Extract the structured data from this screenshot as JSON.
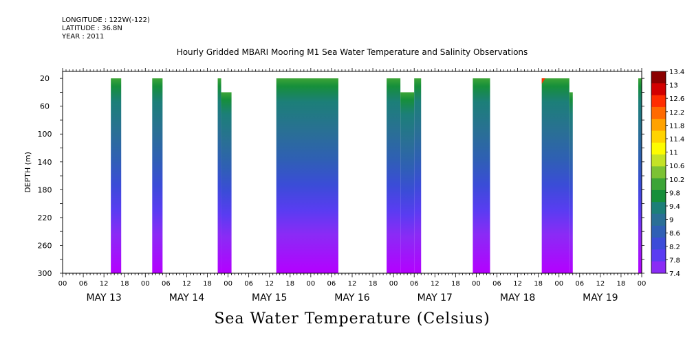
{
  "header": {
    "longitude": "LONGITUDE : 122W(-122)",
    "latitude": "LATITUDE : 36.8N",
    "year": "YEAR : 2011"
  },
  "colors": {
    "palette": [
      "#b400ff",
      "#8a2bf5",
      "#5a3cf2",
      "#3b4cd8",
      "#2f5fb5",
      "#2a6f96",
      "#1c7f78",
      "#168f3a",
      "#3ca437",
      "#7cc234",
      "#c4e226",
      "#fdfc00",
      "#ffd300",
      "#ffa200",
      "#ff6a00",
      "#ff2d00",
      "#d20000",
      "#8b0000"
    ]
  },
  "chart_data": {
    "type": "heatmap",
    "title": "Hourly Gridded MBARI Mooring M1 Sea Water Temperature and Salinity Observations",
    "quantity_label": "Sea Water Temperature (Celsius)",
    "ylabel": "DEPTH (m)",
    "ylim": [
      0,
      300
    ],
    "y_inverted": true,
    "y_ticks": [
      20,
      60,
      100,
      140,
      180,
      220,
      260,
      300
    ],
    "x_hour_ticks": [
      "00",
      "06",
      "12",
      "18",
      "00",
      "06",
      "12",
      "18",
      "00",
      "06",
      "12",
      "18",
      "00",
      "06",
      "12",
      "18",
      "00",
      "06",
      "12",
      "18",
      "00",
      "06",
      "12",
      "18",
      "00",
      "06",
      "12",
      "18",
      "00"
    ],
    "x_day_labels": [
      "MAY 13",
      "MAY 14",
      "MAY 15",
      "MAY 16",
      "MAY 17",
      "MAY 18",
      "MAY 19"
    ],
    "time_range_hours": [
      0,
      168
    ],
    "colorbar_levels": [
      "13.4",
      "13",
      "12.6",
      "12.2",
      "11.8",
      "11.4",
      "11",
      "10.6",
      "10.2",
      "9.8",
      "9.4",
      "9",
      "8.6",
      "8.2",
      "7.8",
      "7.4"
    ],
    "data_segments": [
      {
        "start_day": "MAY 13",
        "start_hour": 14,
        "end_day": "MAY 13",
        "end_hour": 17,
        "top_depth": 20
      },
      {
        "start_day": "MAY 14",
        "start_hour": 2,
        "end_day": "MAY 14",
        "end_hour": 5,
        "top_depth": 20
      },
      {
        "start_day": "MAY 14",
        "start_hour": 21,
        "end_day": "MAY 14",
        "end_hour": 22,
        "top_depth": 20
      },
      {
        "start_day": "MAY 14",
        "start_hour": 22,
        "end_day": "MAY 15",
        "end_hour": 1,
        "top_depth": 40
      },
      {
        "start_day": "MAY 15",
        "start_hour": 14,
        "end_day": "MAY 16",
        "end_hour": 8,
        "top_depth": 20
      },
      {
        "start_day": "MAY 16",
        "start_hour": 22,
        "end_day": "MAY 17",
        "end_hour": 2,
        "top_depth": 20
      },
      {
        "start_day": "MAY 17",
        "start_hour": 2,
        "end_day": "MAY 17",
        "end_hour": 6,
        "top_depth": 40
      },
      {
        "start_day": "MAY 17",
        "start_hour": 6,
        "end_day": "MAY 17",
        "end_hour": 8,
        "top_depth": 20
      },
      {
        "start_day": "MAY 17",
        "start_hour": 23,
        "end_day": "MAY 18",
        "end_hour": 4,
        "top_depth": 20
      },
      {
        "start_day": "MAY 18",
        "start_hour": 19,
        "end_day": "MAY 19",
        "end_hour": 3,
        "top_depth": 20
      },
      {
        "start_day": "MAY 19",
        "start_hour": 3,
        "end_day": "MAY 19",
        "end_hour": 4,
        "top_depth": 40
      },
      {
        "start_day": "MAY 19",
        "start_hour": 23,
        "end_day": "MAY 20",
        "end_hour": 0,
        "top_depth": 20
      }
    ],
    "surface_temperature_approx": 10.0,
    "bottom_temperature_approx": 7.5,
    "warm_spot": {
      "day": "MAY 18",
      "hour": 19,
      "depth": 20,
      "value": 13.0
    }
  }
}
